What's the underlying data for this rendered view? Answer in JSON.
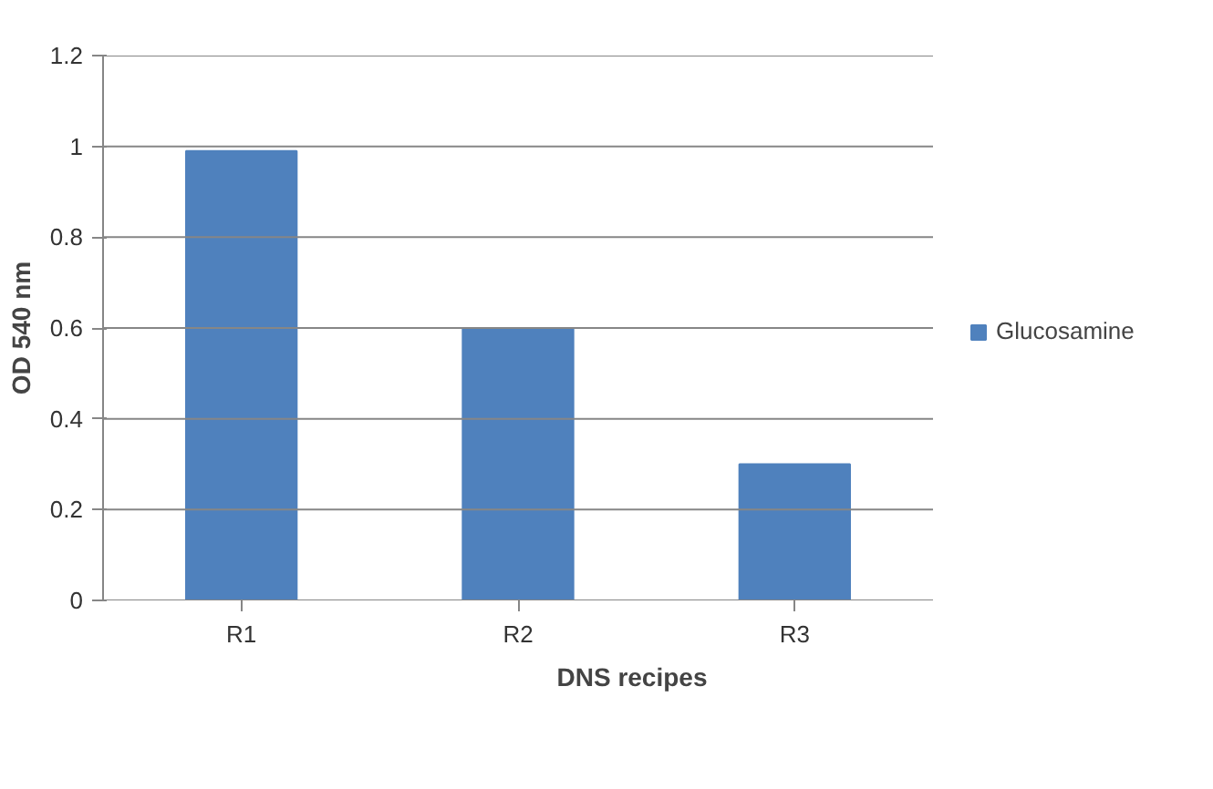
{
  "chart_data": {
    "type": "bar",
    "xlabel": "DNS recipes",
    "ylabel": "OD 540 nm",
    "categories": [
      "R1",
      "R2",
      "R3"
    ],
    "series": [
      {
        "name": "Glucosamine",
        "color": "#4f81bd",
        "values": [
          0.99,
          0.6,
          0.3
        ]
      }
    ],
    "ylim": [
      0,
      1.2
    ],
    "yticks": [
      0,
      0.2,
      0.4,
      0.6,
      0.8,
      1,
      1.2
    ],
    "grid": "y",
    "legend": "right"
  }
}
